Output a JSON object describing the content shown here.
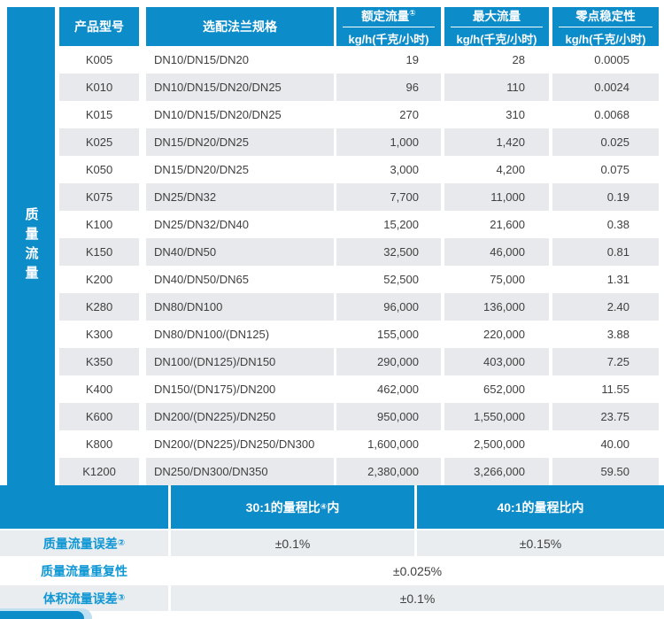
{
  "colors": {
    "header_blue": "#0d8cca",
    "stripe_gray": "#e7e9ec",
    "panel_gray": "#eaedf0",
    "body_text": "#404040",
    "label_blue": "#0f97d4"
  },
  "table": {
    "sidebar_label": "质量流量",
    "header": {
      "model": "产品型号",
      "flange": "选配法兰规格",
      "rated_title": "额定流量",
      "rated_sup": "①",
      "rated_unit": "kg/h(千克/小时)",
      "max_title": "最大流量",
      "max_unit": "kg/h(千克/小时)",
      "zero_title": "零点稳定性",
      "zero_unit": "kg/h(千克/小时)"
    },
    "rows": [
      {
        "model": "K005",
        "flange": "DN10/DN15/DN20",
        "rated": "19",
        "max": "28",
        "zero": "0.0005"
      },
      {
        "model": "K010",
        "flange": "DN10/DN15/DN20/DN25",
        "rated": "96",
        "max": "110",
        "zero": "0.0024"
      },
      {
        "model": "K015",
        "flange": "DN10/DN15/DN20/DN25",
        "rated": "270",
        "max": "310",
        "zero": "0.0068"
      },
      {
        "model": "K025",
        "flange": "DN15/DN20/DN25",
        "rated": "1,000",
        "max": "1,420",
        "zero": "0.025"
      },
      {
        "model": "K050",
        "flange": "DN15/DN20/DN25",
        "rated": "3,000",
        "max": "4,200",
        "zero": "0.075"
      },
      {
        "model": "K075",
        "flange": "DN25/DN32",
        "rated": "7,700",
        "max": "11,000",
        "zero": "0.19"
      },
      {
        "model": "K100",
        "flange": "DN25/DN32/DN40",
        "rated": "15,200",
        "max": "21,600",
        "zero": "0.38"
      },
      {
        "model": "K150",
        "flange": "DN40/DN50",
        "rated": "32,500",
        "max": "46,000",
        "zero": "0.81"
      },
      {
        "model": "K200",
        "flange": "DN40/DN50/DN65",
        "rated": "52,500",
        "max": "75,000",
        "zero": "1.31"
      },
      {
        "model": "K280",
        "flange": "DN80/DN100",
        "rated": "96,000",
        "max": "136,000",
        "zero": "2.40"
      },
      {
        "model": "K300",
        "flange": "DN80/DN100/(DN125)",
        "rated": "155,000",
        "max": "220,000",
        "zero": "3.88"
      },
      {
        "model": "K350",
        "flange": "DN100/(DN125)/DN150",
        "rated": "290,000",
        "max": "403,000",
        "zero": "7.25"
      },
      {
        "model": "K400",
        "flange": "DN150/(DN175)/DN200",
        "rated": "462,000",
        "max": "652,000",
        "zero": "11.55"
      },
      {
        "model": "K600",
        "flange": "DN200/(DN225)/DN250",
        "rated": "950,000",
        "max": "1,550,000",
        "zero": "23.75"
      },
      {
        "model": "K800",
        "flange": "DN200/(DN225)/DN250/DN300",
        "rated": "1,600,000",
        "max": "2,500,000",
        "zero": "40.00"
      },
      {
        "model": "K1200",
        "flange": "DN250/DN300/DN350",
        "rated": "2,380,000",
        "max": "3,266,000",
        "zero": "59.50"
      }
    ]
  },
  "accuracy": {
    "range_30_prefix": "30:1的量程比",
    "range_30_sup": "④",
    "range_30_suffix": "内",
    "range_40": "40:1的量程比内",
    "mass_error_label": "质量流量误差",
    "mass_error_sup": "②",
    "mass_error_30": "±0.1%",
    "mass_error_40": "±0.15%",
    "repeatability_label": "质量流量重复性",
    "repeatability_value": "±0.025%",
    "volume_error_label": "体积流量误差",
    "volume_error_sup": "③",
    "volume_error_value": "±0.1%"
  }
}
